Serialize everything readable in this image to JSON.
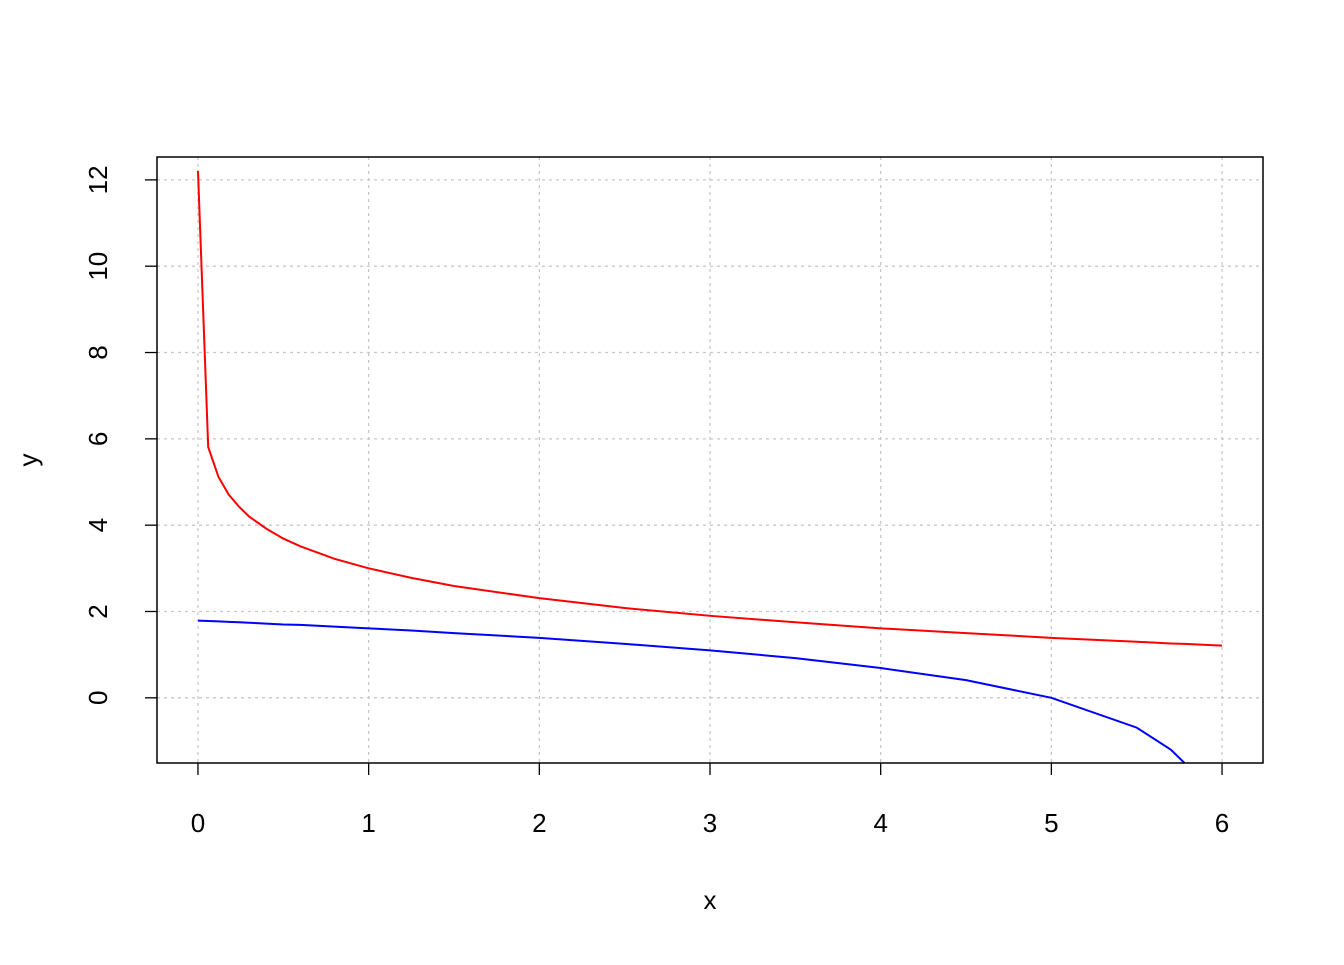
{
  "chart_data": {
    "type": "line",
    "x_label": "x",
    "y_label": "y",
    "x": [
      0.0001,
      0.06,
      0.12,
      0.18,
      0.24,
      0.3,
      0.4,
      0.5,
      0.6,
      0.8,
      1,
      1.25,
      1.5,
      2,
      2.5,
      3,
      3.5,
      4,
      4.5,
      5,
      5.5,
      5.7,
      5.78,
      6
    ],
    "series": [
      {
        "color": "#ff0000",
        "values": [
          12.21,
          5.81,
          5.12,
          4.71,
          4.43,
          4.2,
          3.92,
          3.69,
          3.51,
          3.22,
          3.0,
          2.78,
          2.59,
          2.31,
          2.08,
          1.9,
          1.75,
          1.61,
          1.5,
          1.39,
          1.3,
          1.26,
          1.25,
          1.21
        ]
      },
      {
        "color": "#0000ff",
        "values": [
          1.79,
          1.78,
          1.77,
          1.76,
          1.75,
          1.74,
          1.72,
          1.7,
          1.69,
          1.65,
          1.61,
          1.56,
          1.5,
          1.39,
          1.25,
          1.1,
          0.92,
          0.69,
          0.41,
          0,
          -0.69,
          -1.2,
          -1.51,
          null
        ]
      }
    ],
    "xlim": [
      -0.24,
      6.24
    ],
    "xticks": [
      0,
      1,
      2,
      3,
      4,
      5,
      6
    ],
    "ylim": [
      -1.51,
      12.53
    ],
    "yticks": [
      0,
      2,
      4,
      6,
      8,
      10,
      12
    ],
    "grid": true
  }
}
